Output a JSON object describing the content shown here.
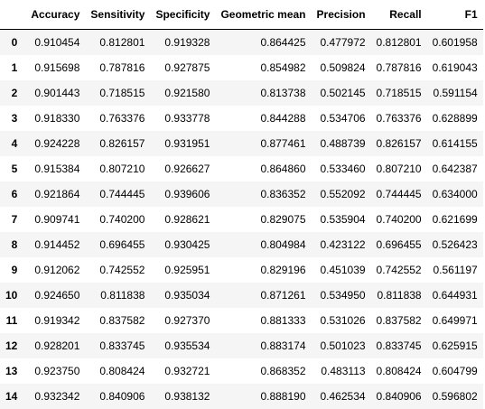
{
  "table": {
    "columns": [
      "",
      "Accuracy",
      "Sensitivity",
      "Specificity",
      "Geometric mean",
      "Precision",
      "Recall",
      "F1"
    ],
    "rows": [
      [
        "0",
        "0.910454",
        "0.812801",
        "0.919328",
        "0.864425",
        "0.477972",
        "0.812801",
        "0.601958"
      ],
      [
        "1",
        "0.915698",
        "0.787816",
        "0.927875",
        "0.854982",
        "0.509824",
        "0.787816",
        "0.619043"
      ],
      [
        "2",
        "0.901443",
        "0.718515",
        "0.921580",
        "0.813738",
        "0.502145",
        "0.718515",
        "0.591154"
      ],
      [
        "3",
        "0.918330",
        "0.763376",
        "0.933778",
        "0.844288",
        "0.534706",
        "0.763376",
        "0.628899"
      ],
      [
        "4",
        "0.924228",
        "0.826157",
        "0.931951",
        "0.877461",
        "0.488739",
        "0.826157",
        "0.614155"
      ],
      [
        "5",
        "0.915384",
        "0.807210",
        "0.926627",
        "0.864860",
        "0.533460",
        "0.807210",
        "0.642387"
      ],
      [
        "6",
        "0.921864",
        "0.744445",
        "0.939606",
        "0.836352",
        "0.552092",
        "0.744445",
        "0.634000"
      ],
      [
        "7",
        "0.909741",
        "0.740200",
        "0.928621",
        "0.829075",
        "0.535904",
        "0.740200",
        "0.621699"
      ],
      [
        "8",
        "0.914452",
        "0.696455",
        "0.930425",
        "0.804984",
        "0.423122",
        "0.696455",
        "0.526423"
      ],
      [
        "9",
        "0.912062",
        "0.742552",
        "0.925951",
        "0.829196",
        "0.451039",
        "0.742552",
        "0.561197"
      ],
      [
        "10",
        "0.924650",
        "0.811838",
        "0.935034",
        "0.871261",
        "0.534950",
        "0.811838",
        "0.644931"
      ],
      [
        "11",
        "0.919342",
        "0.837582",
        "0.927370",
        "0.881333",
        "0.531026",
        "0.837582",
        "0.649971"
      ],
      [
        "12",
        "0.928201",
        "0.833745",
        "0.935534",
        "0.883174",
        "0.501023",
        "0.833745",
        "0.625915"
      ],
      [
        "13",
        "0.923750",
        "0.808424",
        "0.932721",
        "0.868352",
        "0.483113",
        "0.808424",
        "0.604799"
      ],
      [
        "14",
        "0.932342",
        "0.840906",
        "0.938132",
        "0.888190",
        "0.462534",
        "0.840906",
        "0.596802"
      ]
    ]
  }
}
